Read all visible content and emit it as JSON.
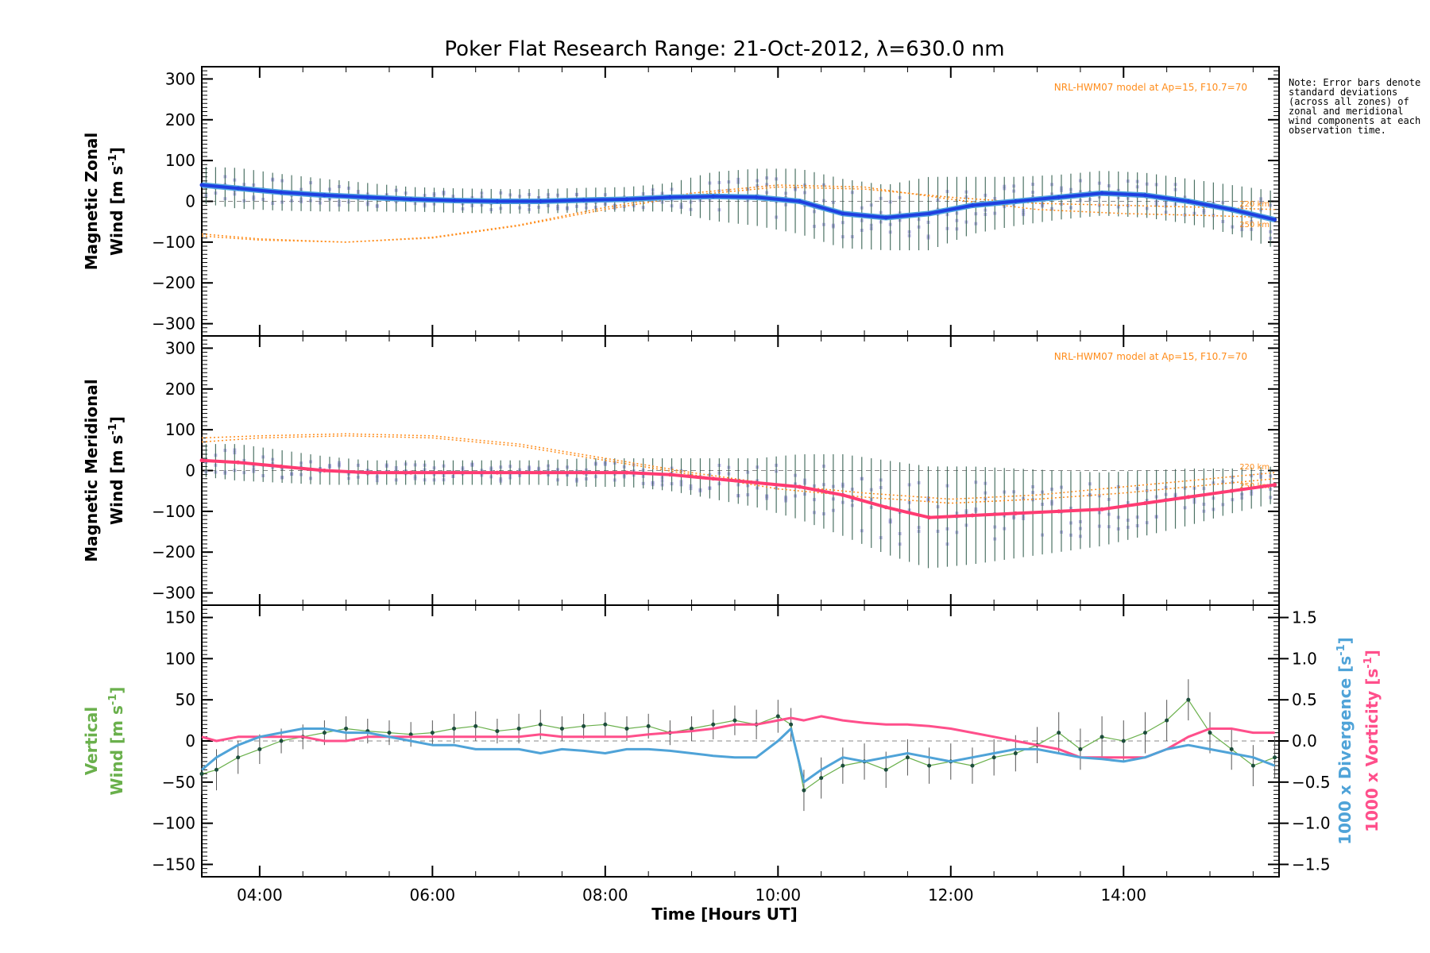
{
  "title": "Poker Flat Research Range: 21-Oct-2012, λ=630.0 nm",
  "note": "Note: Error bars denote standard deviations (across all zones) of zonal and meridional wind components at each observation time.",
  "xlabel": "Time [Hours UT]",
  "x_ticks": [
    "04:00",
    "06:00",
    "08:00",
    "10:00",
    "12:00",
    "14:00"
  ],
  "model_label": "NRL-HWM07 model at Ap=15, F10.7=70",
  "colors": {
    "zonal": "#1f3fe0",
    "zonal_light": "#4fa3e0",
    "meridional": "#ff3b72",
    "vertical": "#6ab04c",
    "divergence": "#4fa3d8",
    "vorticity": "#ff4f8b",
    "model": "#ff8c1a",
    "scatter": "#a9a6e0"
  },
  "chart_data": [
    {
      "type": "line",
      "name": "zonal",
      "ylabel_line1": "Magnetic Zonal",
      "ylabel_line2": "Wind [m s",
      "ylim": [
        -330,
        330
      ],
      "y_ticks": [
        "300",
        "200",
        "100",
        "0",
        "−100",
        "−200",
        "−300"
      ],
      "model_annotations": [
        "220 km",
        "250 km"
      ],
      "x": [
        3.33,
        3.75,
        4.25,
        4.75,
        5.25,
        5.75,
        6.25,
        6.75,
        7.25,
        7.75,
        8.25,
        8.75,
        9.25,
        9.75,
        10.25,
        10.75,
        11.25,
        11.75,
        12.25,
        12.75,
        13.25,
        13.75,
        14.25,
        14.75,
        15.25,
        15.75
      ],
      "values": [
        40,
        32,
        22,
        15,
        10,
        5,
        2,
        0,
        0,
        3,
        5,
        10,
        12,
        10,
        0,
        -30,
        -40,
        -30,
        -10,
        0,
        10,
        20,
        15,
        0,
        -20,
        -45
      ],
      "errors": [
        45,
        50,
        45,
        40,
        35,
        30,
        30,
        30,
        30,
        30,
        30,
        35,
        60,
        70,
        80,
        85,
        80,
        90,
        70,
        60,
        55,
        55,
        55,
        55,
        60,
        70
      ],
      "model_x": [
        3.33,
        4.0,
        5.0,
        6.0,
        7.0,
        8.0,
        9.0,
        10.0,
        11.0,
        12.0,
        13.0,
        14.0,
        15.0,
        15.75
      ],
      "model_220": [
        -85,
        -95,
        -100,
        -90,
        -60,
        -20,
        15,
        35,
        30,
        10,
        -5,
        -10,
        -15,
        -20
      ],
      "model_250": [
        -80,
        -92,
        -100,
        -88,
        -58,
        -15,
        20,
        40,
        35,
        5,
        -20,
        -30,
        -35,
        -40
      ]
    },
    {
      "type": "line",
      "name": "meridional",
      "ylabel_line1": "Magnetic Meridional",
      "ylabel_line2": "Wind [m s",
      "ylim": [
        -330,
        330
      ],
      "y_ticks": [
        "300",
        "200",
        "100",
        "0",
        "−100",
        "−200",
        "−300"
      ],
      "model_annotations": [
        "220 km",
        "250 km"
      ],
      "x": [
        3.33,
        3.75,
        4.25,
        4.75,
        5.25,
        5.75,
        6.25,
        6.75,
        7.25,
        7.75,
        8.25,
        8.75,
        9.25,
        9.75,
        10.25,
        10.75,
        11.25,
        11.75,
        12.25,
        12.75,
        13.25,
        13.75,
        14.25,
        14.75,
        15.25,
        15.75
      ],
      "values": [
        25,
        20,
        10,
        0,
        -5,
        -5,
        -5,
        -5,
        -5,
        -5,
        -5,
        -10,
        -20,
        -30,
        -40,
        -60,
        -90,
        -115,
        -110,
        -105,
        -100,
        -95,
        -80,
        -65,
        -50,
        -35
      ],
      "errors": [
        40,
        45,
        40,
        35,
        30,
        30,
        30,
        30,
        30,
        35,
        35,
        40,
        50,
        60,
        80,
        100,
        115,
        125,
        120,
        110,
        100,
        90,
        80,
        70,
        55,
        45
      ],
      "model_x": [
        3.33,
        4.0,
        5.0,
        6.0,
        7.0,
        8.0,
        9.0,
        10.0,
        11.0,
        12.0,
        13.0,
        14.0,
        15.0,
        15.75
      ],
      "model_220": [
        80,
        85,
        90,
        85,
        65,
        30,
        -5,
        -35,
        -55,
        -70,
        -60,
        -40,
        -20,
        -5
      ],
      "model_250": [
        70,
        80,
        85,
        80,
        60,
        25,
        -10,
        -45,
        -65,
        -80,
        -70,
        -55,
        -35,
        -20
      ]
    },
    {
      "type": "line",
      "name": "vertical",
      "ylabel_line1": "Vertical",
      "ylabel_line2": "Wind [m s",
      "right_label_1": "1000 x Divergence [s",
      "right_label_2": "1000 x Vorticity [s",
      "ylim": [
        -165,
        165
      ],
      "y_ticks": [
        "150",
        "100",
        "50",
        "0",
        "−50",
        "−100",
        "−150"
      ],
      "y2lim": [
        -1.65,
        1.65
      ],
      "y2_ticks": [
        "1.5",
        "1.0",
        "0.5",
        "0.0",
        "−0.5",
        "−1.0",
        "−1.5"
      ],
      "x": [
        3.33,
        3.5,
        3.75,
        4.0,
        4.25,
        4.5,
        4.75,
        5.0,
        5.25,
        5.5,
        5.75,
        6.0,
        6.25,
        6.5,
        6.75,
        7.0,
        7.25,
        7.5,
        7.75,
        8.0,
        8.25,
        8.5,
        8.75,
        9.0,
        9.25,
        9.5,
        9.75,
        10.0,
        10.15,
        10.3,
        10.5,
        10.75,
        11.0,
        11.25,
        11.5,
        11.75,
        12.0,
        12.25,
        12.5,
        12.75,
        13.0,
        13.25,
        13.5,
        13.75,
        14.0,
        14.25,
        14.5,
        14.75,
        15.0,
        15.25,
        15.5,
        15.75
      ],
      "values": [
        -40,
        -35,
        -20,
        -10,
        0,
        5,
        10,
        15,
        12,
        10,
        8,
        10,
        15,
        18,
        12,
        15,
        20,
        15,
        18,
        20,
        15,
        18,
        10,
        15,
        20,
        25,
        20,
        30,
        20,
        -60,
        -45,
        -30,
        -25,
        -35,
        -20,
        -30,
        -25,
        -30,
        -20,
        -15,
        -5,
        10,
        -10,
        5,
        0,
        10,
        25,
        50,
        10,
        -10,
        -30,
        -20
      ],
      "errors": [
        25,
        25,
        20,
        18,
        15,
        15,
        15,
        15,
        15,
        15,
        15,
        15,
        18,
        18,
        15,
        18,
        18,
        15,
        15,
        15,
        15,
        15,
        15,
        15,
        18,
        18,
        18,
        20,
        20,
        25,
        25,
        22,
        22,
        22,
        22,
        22,
        22,
        22,
        22,
        22,
        22,
        25,
        25,
        25,
        25,
        25,
        25,
        25,
        25,
        25,
        25,
        25
      ],
      "divergence": [
        -0.35,
        -0.2,
        -0.05,
        0.05,
        0.1,
        0.15,
        0.15,
        0.1,
        0.1,
        0.05,
        0.0,
        -0.05,
        -0.05,
        -0.1,
        -0.1,
        -0.1,
        -0.15,
        -0.1,
        -0.12,
        -0.15,
        -0.1,
        -0.1,
        -0.12,
        -0.15,
        -0.18,
        -0.2,
        -0.2,
        0.0,
        0.15,
        -0.5,
        -0.35,
        -0.2,
        -0.25,
        -0.2,
        -0.15,
        -0.2,
        -0.25,
        -0.2,
        -0.15,
        -0.1,
        -0.1,
        -0.15,
        -0.2,
        -0.22,
        -0.25,
        -0.2,
        -0.1,
        -0.05,
        -0.1,
        -0.15,
        -0.2,
        -0.3
      ],
      "vorticity": [
        0.05,
        0.0,
        0.05,
        0.05,
        0.05,
        0.05,
        0.0,
        0.0,
        0.05,
        0.05,
        0.05,
        0.05,
        0.05,
        0.05,
        0.05,
        0.05,
        0.08,
        0.05,
        0.05,
        0.05,
        0.05,
        0.08,
        0.1,
        0.12,
        0.15,
        0.2,
        0.2,
        0.25,
        0.28,
        0.25,
        0.3,
        0.25,
        0.22,
        0.2,
        0.2,
        0.18,
        0.15,
        0.1,
        0.05,
        0.0,
        -0.05,
        -0.1,
        -0.2,
        -0.2,
        -0.2,
        -0.2,
        -0.1,
        0.05,
        0.15,
        0.15,
        0.1,
        0.1
      ]
    }
  ]
}
